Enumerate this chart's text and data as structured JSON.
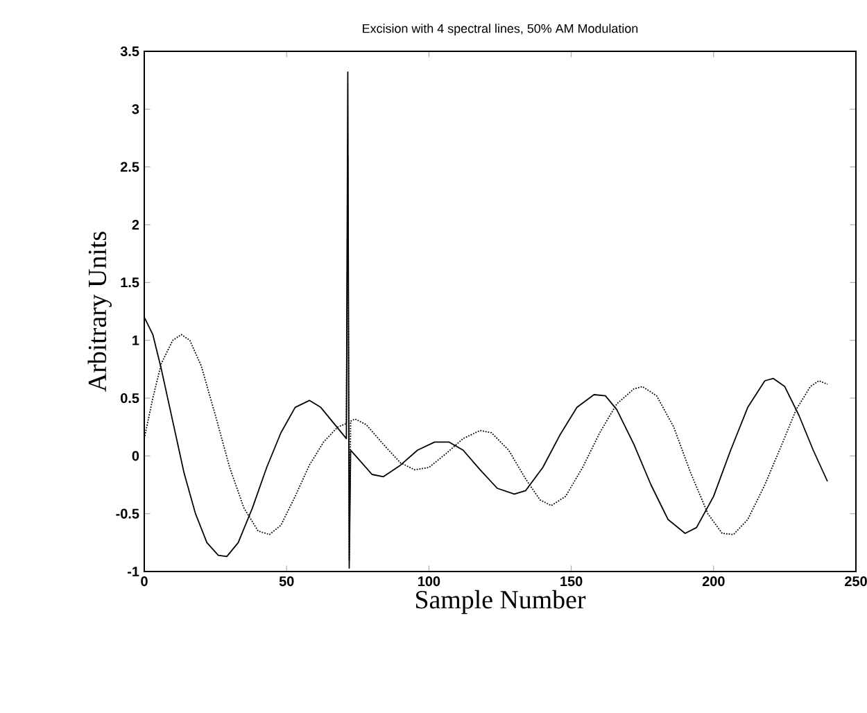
{
  "chart_data": {
    "type": "line",
    "title": "Excision with 4 spectral lines, 50% AM Modulation",
    "xlabel": "Sample Number",
    "ylabel": "Arbitrary Units",
    "xlim": [
      0,
      250
    ],
    "ylim": [
      -1,
      3.5
    ],
    "xticks": [
      0,
      50,
      100,
      150,
      200,
      250
    ],
    "yticks": [
      -1,
      -0.5,
      0,
      0.5,
      1,
      1.5,
      2,
      2.5,
      3,
      3.5
    ],
    "grid": false,
    "series": [
      {
        "color": "#000000",
        "line_style": "solid",
        "x": [
          0,
          3,
          6,
          10,
          14,
          18,
          22,
          26,
          29,
          33,
          38,
          43,
          48,
          53,
          58,
          62,
          66,
          70,
          71,
          71.5,
          72,
          72.5,
          75,
          80,
          84,
          90,
          96,
          102,
          107,
          112,
          118,
          124,
          130,
          134,
          140,
          146,
          152,
          158,
          162,
          166,
          172,
          178,
          184,
          190,
          194,
          200,
          206,
          212,
          218,
          221,
          225,
          230,
          235,
          240
        ],
        "values": [
          1.2,
          1.05,
          0.75,
          0.3,
          -0.15,
          -0.5,
          -0.75,
          -0.86,
          -0.87,
          -0.75,
          -0.45,
          -0.1,
          0.2,
          0.42,
          0.48,
          0.42,
          0.3,
          0.18,
          0.15,
          3.32,
          -0.97,
          0.05,
          -0.02,
          -0.16,
          -0.18,
          -0.08,
          0.05,
          0.12,
          0.12,
          0.05,
          -0.12,
          -0.28,
          -0.33,
          -0.3,
          -0.1,
          0.18,
          0.42,
          0.53,
          0.52,
          0.4,
          0.1,
          -0.25,
          -0.55,
          -0.67,
          -0.62,
          -0.35,
          0.05,
          0.42,
          0.65,
          0.67,
          0.6,
          0.35,
          0.05,
          -0.22
        ]
      },
      {
        "color": "#000000",
        "line_style": "dotted",
        "x": [
          0,
          3,
          6,
          10,
          13,
          16,
          20,
          25,
          30,
          35,
          40,
          44,
          48,
          53,
          58,
          63,
          68,
          71,
          71.5,
          72,
          72.5,
          74,
          78,
          84,
          90,
          95,
          100,
          106,
          112,
          118,
          122,
          128,
          134,
          139,
          143,
          148,
          154,
          160,
          166,
          172,
          175,
          180,
          186,
          192,
          198,
          203,
          207,
          212,
          218,
          224,
          229,
          234,
          237,
          240
        ],
        "values": [
          0.15,
          0.5,
          0.8,
          1.0,
          1.05,
          1.0,
          0.78,
          0.35,
          -0.1,
          -0.45,
          -0.65,
          -0.68,
          -0.6,
          -0.35,
          -0.08,
          0.12,
          0.25,
          0.28,
          2.58,
          -0.9,
          0.3,
          0.32,
          0.27,
          0.1,
          -0.06,
          -0.12,
          -0.1,
          0.02,
          0.15,
          0.22,
          0.2,
          0.05,
          -0.2,
          -0.38,
          -0.43,
          -0.35,
          -0.1,
          0.2,
          0.45,
          0.58,
          0.6,
          0.52,
          0.25,
          -0.15,
          -0.5,
          -0.67,
          -0.68,
          -0.55,
          -0.25,
          0.1,
          0.4,
          0.6,
          0.65,
          0.62
        ]
      }
    ]
  }
}
